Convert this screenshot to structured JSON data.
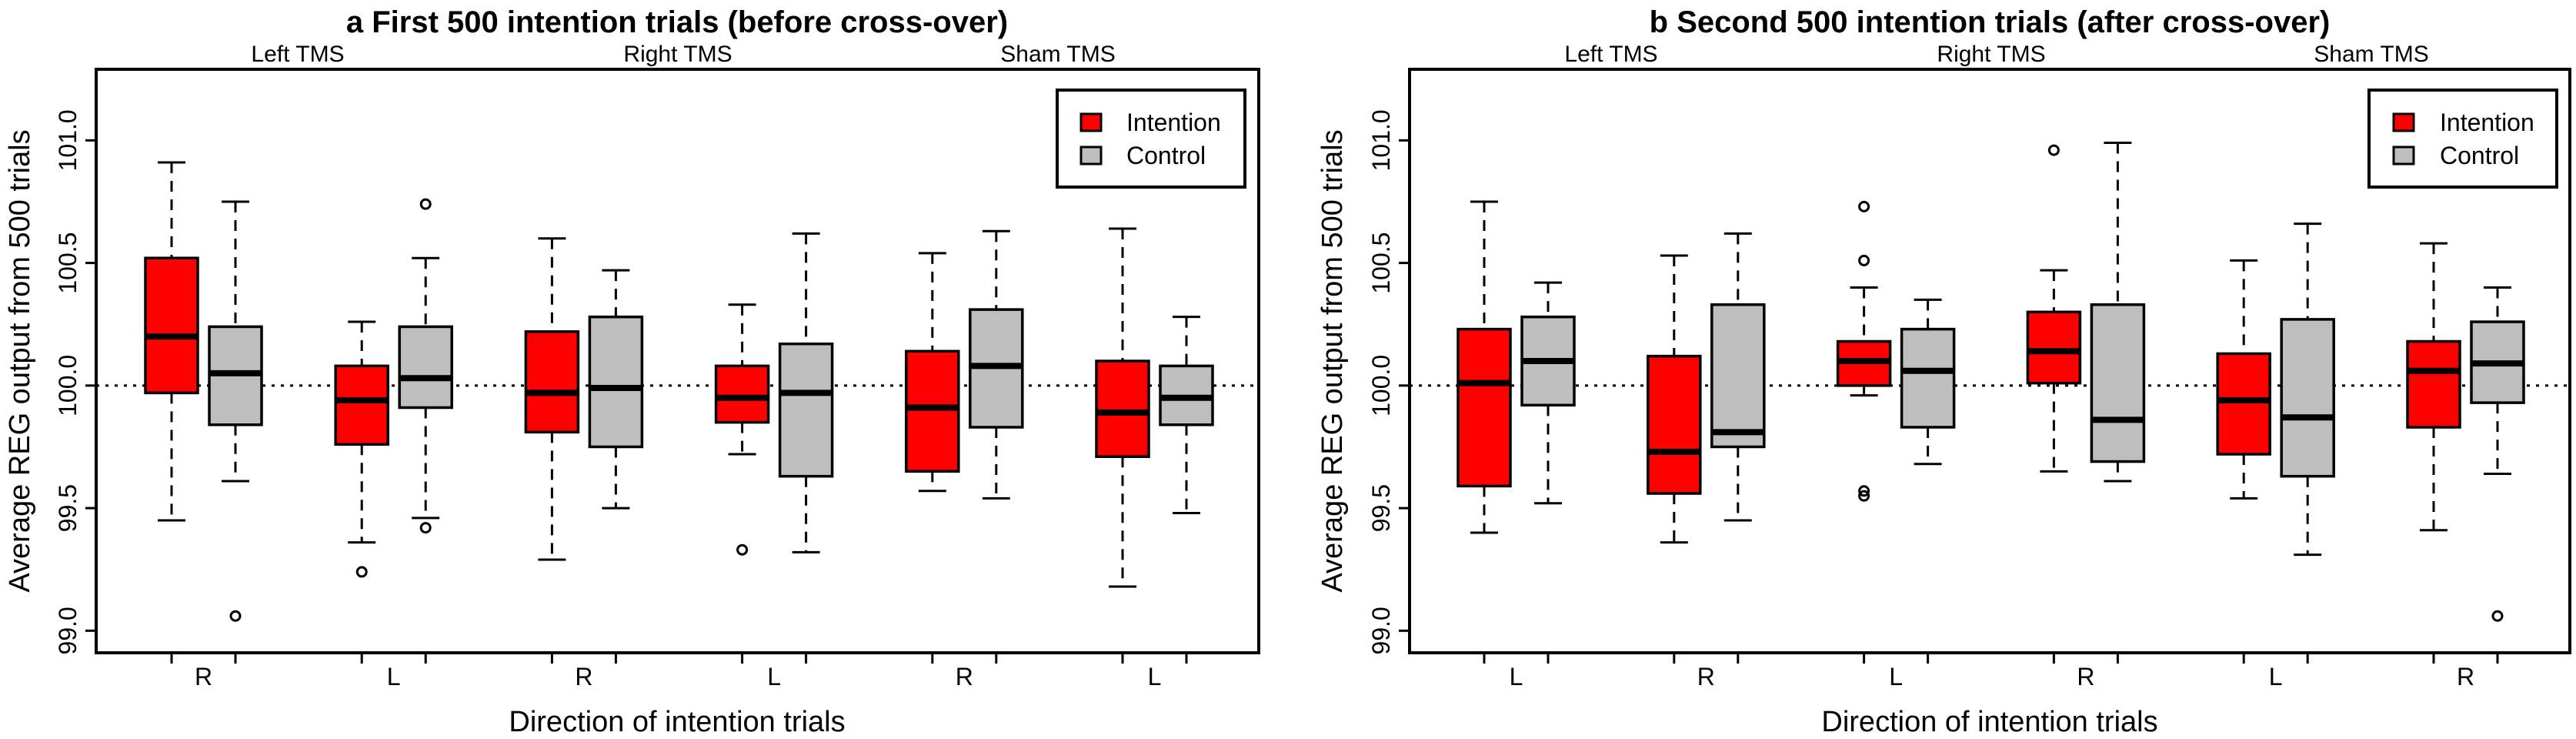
{
  "chart_data": [
    {
      "type": "boxplot",
      "title": "a  First 500 intention trials (before cross-over)",
      "xlabel": "Direction of intention trials",
      "ylabel": "Average REG output from 500 trials",
      "ylim": [
        98.91,
        101.29
      ],
      "yticks": [
        "99.0",
        "99.5",
        "100.0",
        "100.5",
        "101.0"
      ],
      "reference_line": 100.0,
      "groups": [
        "Left TMS",
        "Right TMS",
        "Sham TMS"
      ],
      "categories": [
        "R",
        "L",
        "R",
        "L",
        "R",
        "L"
      ],
      "legend": {
        "position": "top-right",
        "entries": [
          {
            "label": "Intention",
            "color": "#ff0000"
          },
          {
            "label": "Control",
            "color": "#bebebe"
          }
        ]
      },
      "series": [
        {
          "name": "Intention",
          "color": "#ff0000",
          "boxes": [
            {
              "whisker_low": 99.45,
              "q1": 99.97,
              "median": 100.2,
              "q3": 100.52,
              "whisker_high": 100.91,
              "outliers": []
            },
            {
              "whisker_low": 99.36,
              "q1": 99.76,
              "median": 99.94,
              "q3": 100.08,
              "whisker_high": 100.26,
              "outliers": [
                99.24
              ]
            },
            {
              "whisker_low": 99.29,
              "q1": 99.81,
              "median": 99.97,
              "q3": 100.22,
              "whisker_high": 100.6,
              "outliers": []
            },
            {
              "whisker_low": 99.72,
              "q1": 99.85,
              "median": 99.95,
              "q3": 100.08,
              "whisker_high": 100.33,
              "outliers": [
                99.33
              ]
            },
            {
              "whisker_low": 99.57,
              "q1": 99.65,
              "median": 99.91,
              "q3": 100.14,
              "whisker_high": 100.54,
              "outliers": []
            },
            {
              "whisker_low": 99.18,
              "q1": 99.71,
              "median": 99.89,
              "q3": 100.1,
              "whisker_high": 100.64,
              "outliers": []
            }
          ]
        },
        {
          "name": "Control",
          "color": "#bebebe",
          "boxes": [
            {
              "whisker_low": 99.61,
              "q1": 99.84,
              "median": 100.05,
              "q3": 100.24,
              "whisker_high": 100.75,
              "outliers": [
                99.06
              ]
            },
            {
              "whisker_low": 99.46,
              "q1": 99.91,
              "median": 100.03,
              "q3": 100.24,
              "whisker_high": 100.52,
              "outliers": [
                100.74,
                99.42
              ]
            },
            {
              "whisker_low": 99.5,
              "q1": 99.75,
              "median": 99.99,
              "q3": 100.28,
              "whisker_high": 100.47,
              "outliers": []
            },
            {
              "whisker_low": 99.32,
              "q1": 99.63,
              "median": 99.97,
              "q3": 100.17,
              "whisker_high": 100.62,
              "outliers": []
            },
            {
              "whisker_low": 99.54,
              "q1": 99.83,
              "median": 100.08,
              "q3": 100.31,
              "whisker_high": 100.63,
              "outliers": []
            },
            {
              "whisker_low": 99.48,
              "q1": 99.84,
              "median": 99.95,
              "q3": 100.08,
              "whisker_high": 100.28,
              "outliers": []
            }
          ]
        }
      ]
    },
    {
      "type": "boxplot",
      "title": "b  Second 500 intention trials (after cross-over)",
      "xlabel": "Direction of intention trials",
      "ylabel": "Average REG output from 500 trials",
      "ylim": [
        98.91,
        101.29
      ],
      "yticks": [
        "99.0",
        "99.5",
        "100.0",
        "100.5",
        "101.0"
      ],
      "reference_line": 100.0,
      "groups": [
        "Left TMS",
        "Right TMS",
        "Sham TMS"
      ],
      "categories": [
        "L",
        "R",
        "L",
        "R",
        "L",
        "R"
      ],
      "legend": {
        "position": "top-right",
        "entries": [
          {
            "label": "Intention",
            "color": "#ff0000"
          },
          {
            "label": "Control",
            "color": "#bebebe"
          }
        ]
      },
      "series": [
        {
          "name": "Intention",
          "color": "#ff0000",
          "boxes": [
            {
              "whisker_low": 99.4,
              "q1": 99.59,
              "median": 100.01,
              "q3": 100.23,
              "whisker_high": 100.75,
              "outliers": []
            },
            {
              "whisker_low": 99.36,
              "q1": 99.56,
              "median": 99.73,
              "q3": 100.12,
              "whisker_high": 100.53,
              "outliers": []
            },
            {
              "whisker_low": 99.96,
              "q1": 100.0,
              "median": 100.1,
              "q3": 100.18,
              "whisker_high": 100.4,
              "outliers": [
                100.73,
                100.51,
                99.57,
                99.55
              ]
            },
            {
              "whisker_low": 99.65,
              "q1": 100.01,
              "median": 100.14,
              "q3": 100.3,
              "whisker_high": 100.47,
              "outliers": [
                100.96
              ]
            },
            {
              "whisker_low": 99.54,
              "q1": 99.72,
              "median": 99.94,
              "q3": 100.13,
              "whisker_high": 100.51,
              "outliers": []
            },
            {
              "whisker_low": 99.41,
              "q1": 99.83,
              "median": 100.06,
              "q3": 100.18,
              "whisker_high": 100.58,
              "outliers": []
            }
          ]
        },
        {
          "name": "Control",
          "color": "#bebebe",
          "boxes": [
            {
              "whisker_low": 99.52,
              "q1": 99.92,
              "median": 100.1,
              "q3": 100.28,
              "whisker_high": 100.42,
              "outliers": []
            },
            {
              "whisker_low": 99.45,
              "q1": 99.75,
              "median": 99.81,
              "q3": 100.33,
              "whisker_high": 100.62,
              "outliers": []
            },
            {
              "whisker_low": 99.68,
              "q1": 99.83,
              "median": 100.06,
              "q3": 100.23,
              "whisker_high": 100.35,
              "outliers": []
            },
            {
              "whisker_low": 99.61,
              "q1": 99.69,
              "median": 99.86,
              "q3": 100.33,
              "whisker_high": 100.99,
              "outliers": []
            },
            {
              "whisker_low": 99.31,
              "q1": 99.63,
              "median": 99.87,
              "q3": 100.27,
              "whisker_high": 100.66,
              "outliers": []
            },
            {
              "whisker_low": 99.64,
              "q1": 99.93,
              "median": 100.09,
              "q3": 100.26,
              "whisker_high": 100.4,
              "outliers": [
                99.06
              ]
            }
          ]
        }
      ]
    }
  ]
}
